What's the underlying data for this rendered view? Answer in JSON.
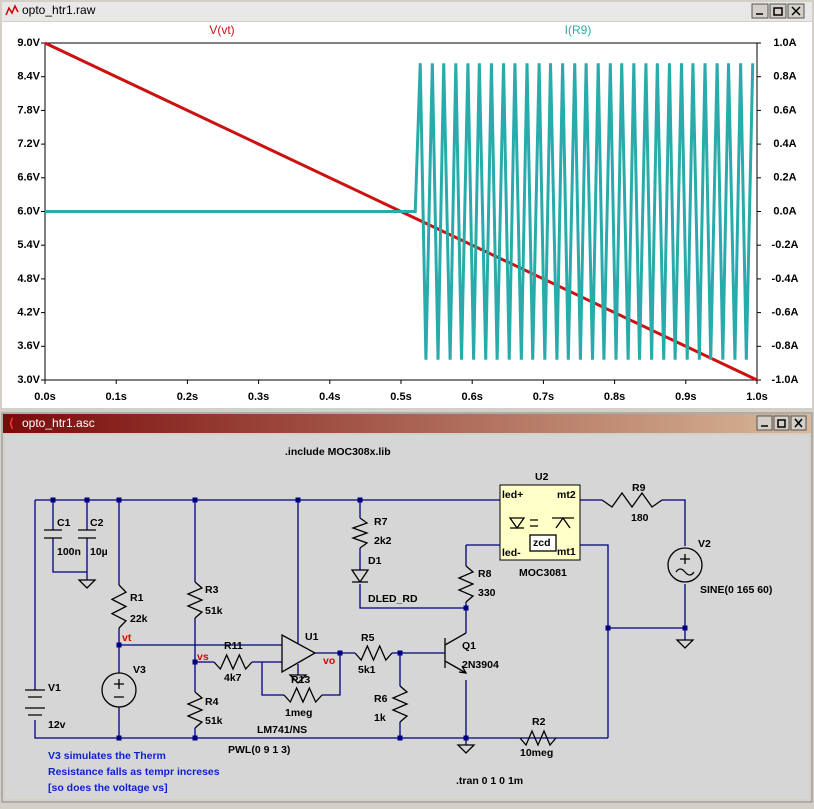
{
  "plot_window": {
    "title": "opto_htr1.raw"
  },
  "chart_data": {
    "type": "line",
    "xlim": [
      0,
      1
    ],
    "xticks": [
      {
        "value": 0,
        "label": "0.0s"
      },
      {
        "value": 0.1,
        "label": "0.1s"
      },
      {
        "value": 0.2,
        "label": "0.2s"
      },
      {
        "value": 0.3,
        "label": "0.3s"
      },
      {
        "value": 0.4,
        "label": "0.4s"
      },
      {
        "value": 0.5,
        "label": "0.5s"
      },
      {
        "value": 0.6,
        "label": "0.6s"
      },
      {
        "value": 0.7,
        "label": "0.7s"
      },
      {
        "value": 0.8,
        "label": "0.8s"
      },
      {
        "value": 0.9,
        "label": "0.9s"
      },
      {
        "value": 1,
        "label": "1.0s"
      }
    ],
    "ylim": [
      3,
      9
    ],
    "yticks": [
      {
        "value": 3,
        "label": "3.0V"
      },
      {
        "value": 3.6,
        "label": "3.6V"
      },
      {
        "value": 4.2,
        "label": "4.2V"
      },
      {
        "value": 4.8,
        "label": "4.8V"
      },
      {
        "value": 5.4,
        "label": "5.4V"
      },
      {
        "value": 6,
        "label": "6.0V"
      },
      {
        "value": 6.6,
        "label": "6.6V"
      },
      {
        "value": 7.2,
        "label": "7.2V"
      },
      {
        "value": 7.8,
        "label": "7.8V"
      },
      {
        "value": 8.4,
        "label": "8.4V"
      },
      {
        "value": 9,
        "label": "9.0V"
      }
    ],
    "y2lim": [
      -1,
      1
    ],
    "y2ticks": [
      {
        "value": -1,
        "label": "-1.0A"
      },
      {
        "value": -0.8,
        "label": "-0.8A"
      },
      {
        "value": -0.6,
        "label": "-0.6A"
      },
      {
        "value": -0.4,
        "label": "-0.4A"
      },
      {
        "value": -0.2,
        "label": "-0.2A"
      },
      {
        "value": 0,
        "label": "0.0A"
      },
      {
        "value": 0.2,
        "label": "0.2A"
      },
      {
        "value": 0.4,
        "label": "0.4A"
      },
      {
        "value": 0.6,
        "label": "0.6A"
      },
      {
        "value": 0.8,
        "label": "0.8A"
      },
      {
        "value": 1,
        "label": "1.0A"
      }
    ],
    "grid": false,
    "series": [
      {
        "name": "V(vt)",
        "color": "#cc1111",
        "x": [
          0,
          1
        ],
        "values": [
          9,
          3
        ]
      },
      {
        "name": "I(R9)",
        "color": "#2aabab",
        "axis": "y2",
        "x": [
          0,
          0.52,
          0.527,
          0.535,
          0.544,
          0.552,
          0.56,
          0.569,
          0.577,
          0.585,
          0.594,
          0.602,
          0.61,
          0.619,
          0.627,
          0.635,
          0.644,
          0.652,
          0.66,
          0.669,
          0.677,
          0.685,
          0.694,
          0.702,
          0.71,
          0.719,
          0.727,
          0.735,
          0.744,
          0.752,
          0.76,
          0.769,
          0.777,
          0.785,
          0.794,
          0.802,
          0.81,
          0.819,
          0.827,
          0.835,
          0.844,
          0.852,
          0.86,
          0.869,
          0.877,
          0.885,
          0.894,
          0.902,
          0.91,
          0.919,
          0.927,
          0.935,
          0.944,
          0.952,
          0.96,
          0.969,
          0.977,
          0.985,
          0.994
        ],
        "values": [
          0,
          0,
          0.88,
          -0.88,
          0.88,
          -0.88,
          0.88,
          -0.88,
          0.88,
          -0.88,
          0.88,
          -0.88,
          0.88,
          -0.88,
          0.88,
          -0.88,
          0.88,
          -0.88,
          0.88,
          -0.88,
          0.88,
          -0.88,
          0.88,
          -0.88,
          0.88,
          -0.88,
          0.88,
          -0.88,
          0.88,
          -0.88,
          0.88,
          -0.88,
          0.88,
          -0.88,
          0.88,
          -0.88,
          0.88,
          -0.88,
          0.88,
          -0.88,
          0.88,
          -0.88,
          0.88,
          -0.88,
          0.88,
          -0.88,
          0.88,
          -0.88,
          0.88,
          -0.88,
          0.88,
          -0.88,
          0.88,
          -0.88,
          0.88,
          -0.88,
          0.88,
          -0.88,
          0.88
        ]
      }
    ]
  },
  "schematic_window": {
    "title": "opto_htr1.asc",
    "labels": [
      ".include MOC308x.lib",
      "C1",
      "100n",
      "C2",
      "10µ",
      "R1",
      "22k",
      "vt",
      "V3",
      "V1",
      "12v",
      "R3",
      "51k",
      "vs",
      "R11",
      "4k7",
      "R4",
      "51k",
      "U1",
      "vo",
      "R13",
      "1meg",
      "LM741/NS",
      "PWL(0 9 1 3)",
      "V3 simulates the Therm",
      "Resistance falls as tempr increses",
      "[so does the voltage vs]",
      "R7",
      "2k2",
      "D1",
      "DLED_RD",
      "R5",
      "5k1",
      "R6",
      "1k",
      "R8",
      "330",
      "Q1",
      "2N3904",
      "R2",
      "10meg",
      ".tran 0 1 0 1m",
      "U2",
      "led+",
      "mt2",
      "zcd",
      "led-",
      "mt1",
      "MOC3081",
      "R9",
      "180",
      "V2",
      "SINE(0 165 60)"
    ]
  }
}
